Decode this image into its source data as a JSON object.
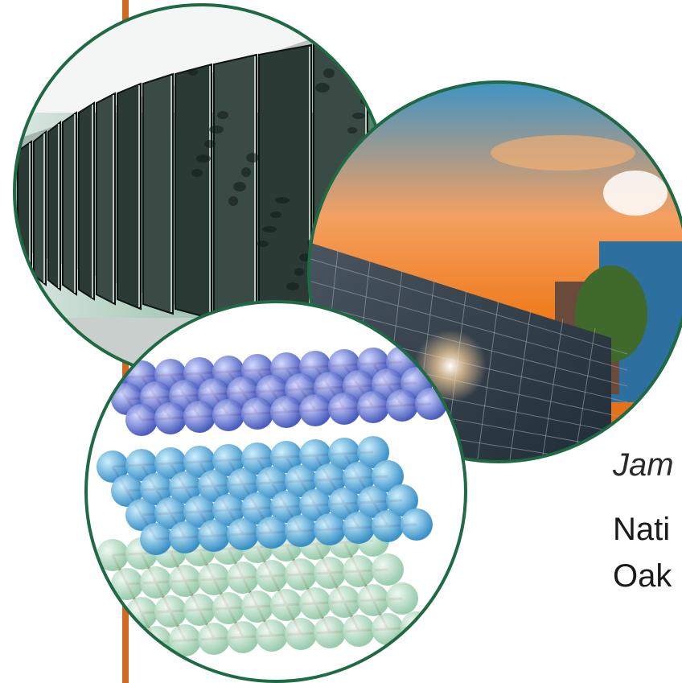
{
  "slide": {
    "text_lines": [
      "Jam",
      "Nati",
      "Oak"
    ]
  },
  "colors": {
    "accent_orange": "#d2691e",
    "circle_border": "#1f6a44",
    "background": "#ffffff"
  },
  "images": [
    {
      "name": "supercomputer-jaguar-photo"
    },
    {
      "name": "solar-panels-sunset-photo"
    },
    {
      "name": "molecular-lattice-rendering"
    }
  ]
}
